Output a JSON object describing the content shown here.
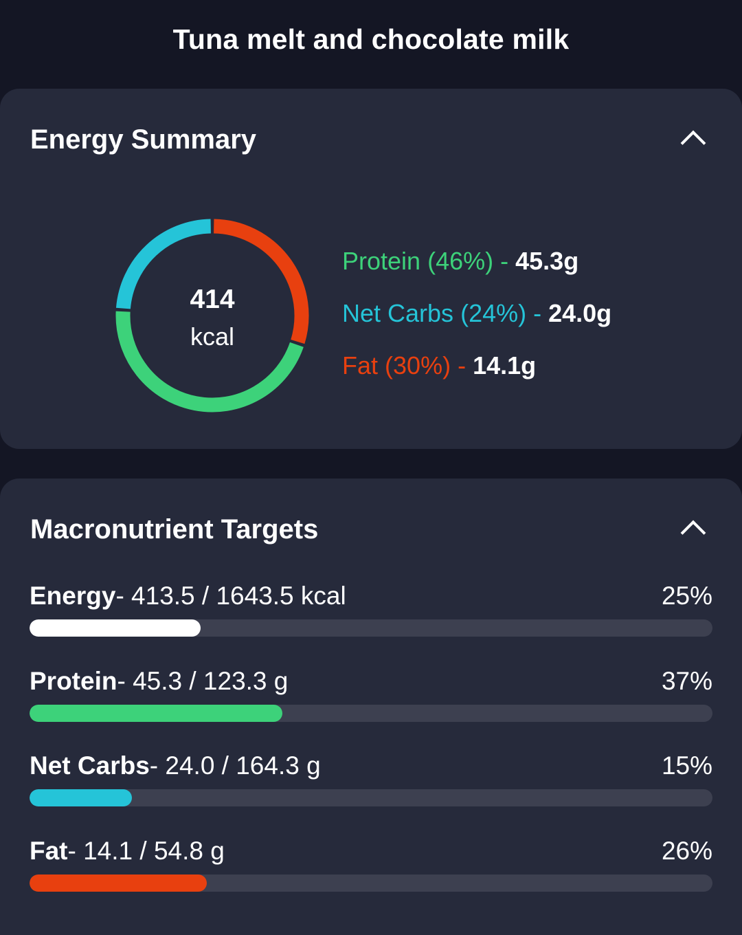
{
  "page_title": "Tuna melt and chocolate milk",
  "colors": {
    "protein": "#3dd27a",
    "net_carbs": "#25c4d8",
    "fat": "#e8400f",
    "energy": "#ffffff",
    "track": "#3d4050"
  },
  "energy_summary": {
    "title": "Energy Summary",
    "collapse_icon": "chevron-up-icon",
    "total": "414",
    "unit": "kcal",
    "macros": [
      {
        "name": "Protein",
        "percent": "(46%)",
        "sep": " - ",
        "value": "45.3g",
        "share": 46,
        "color": "#3dd27a"
      },
      {
        "name": "Net Carbs",
        "percent": "(24%)",
        "sep": " - ",
        "value": "24.0g",
        "share": 24,
        "color": "#25c4d8"
      },
      {
        "name": "Fat",
        "percent": "(30%)",
        "sep": " - ",
        "value": "14.1g",
        "share": 30,
        "color": "#e8400f"
      }
    ]
  },
  "macronutrient_targets": {
    "title": "Macronutrient Targets",
    "collapse_icon": "chevron-up-icon",
    "rows": [
      {
        "label": "Energy",
        "detail": "- 413.5 / 1643.5 kcal",
        "percent": "25%",
        "progress": 0.25,
        "color": "#ffffff"
      },
      {
        "label": "Protein",
        "detail": "- 45.3 / 123.3 g",
        "percent": "37%",
        "progress": 0.37,
        "color": "#3dd27a"
      },
      {
        "label": "Net Carbs",
        "detail": "- 24.0 / 164.3 g",
        "percent": "15%",
        "progress": 0.15,
        "color": "#25c4d8"
      },
      {
        "label": "Fat",
        "detail": "- 14.1 / 54.8 g",
        "percent": "26%",
        "progress": 0.26,
        "color": "#e8400f"
      }
    ]
  }
}
